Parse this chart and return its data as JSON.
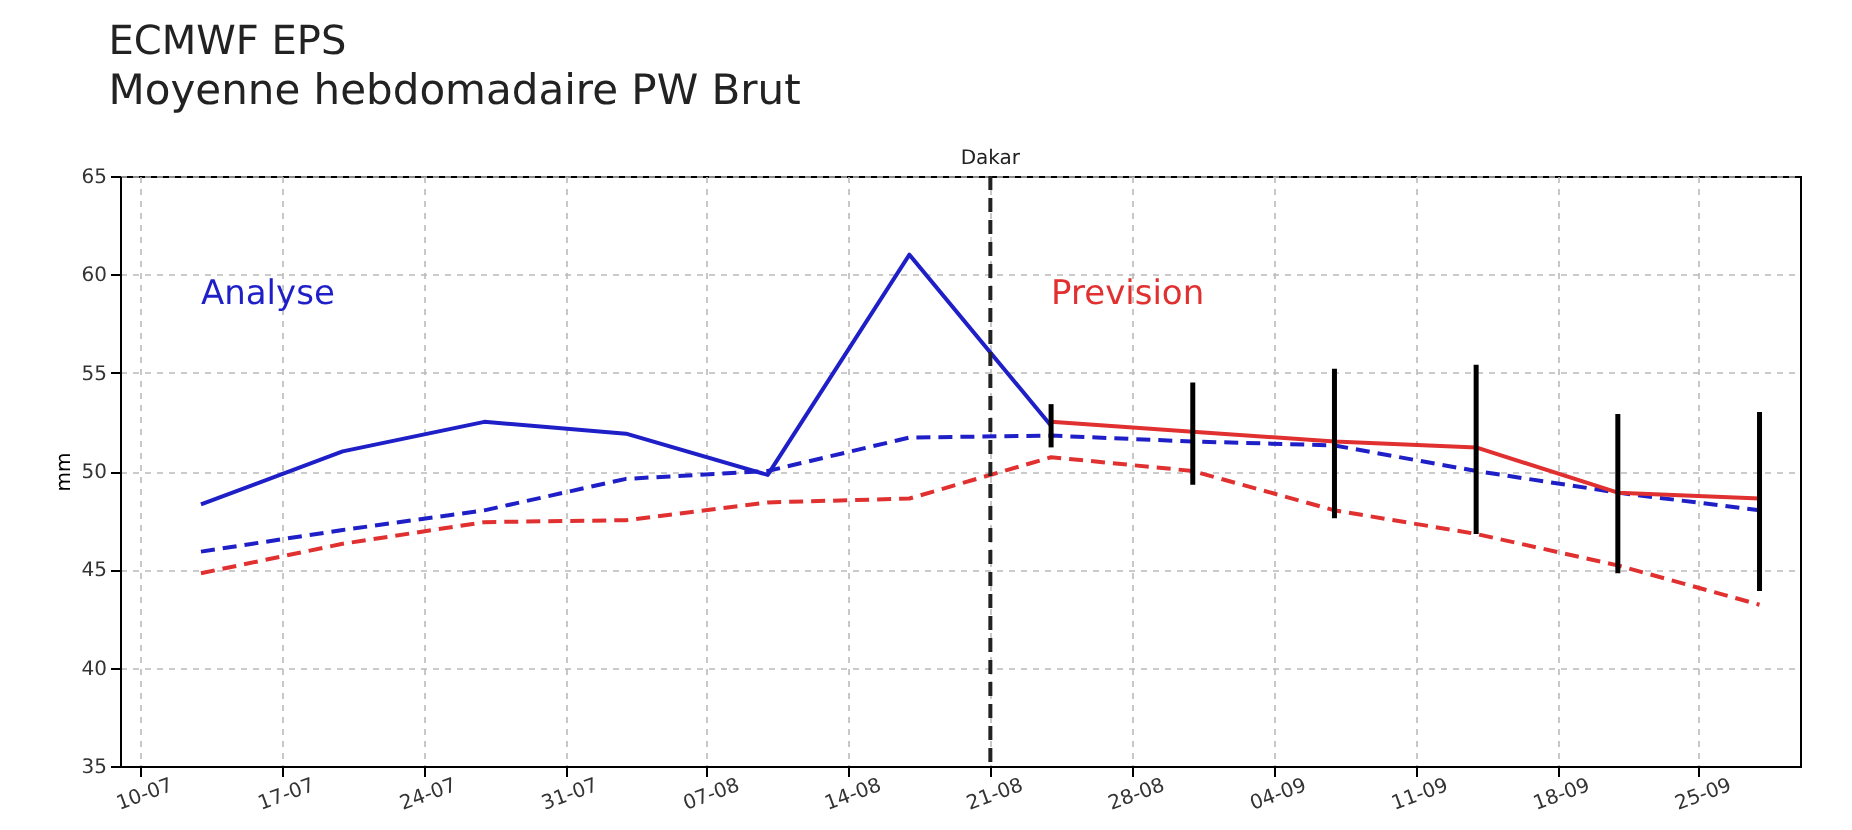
{
  "chart_data": {
    "type": "line",
    "title": "ECMWF EPS",
    "subtitle": "Moyenne hebdomadaire PW Brut",
    "ylabel": "mm",
    "x": [
      "--07-13",
      "--07-20",
      "--07-27",
      "--08-03",
      "--08-10",
      "--08-17",
      "--08-24",
      "--08-31",
      "--09-07",
      "--09-14",
      "--09-21",
      "--09-28"
    ],
    "series": [
      {
        "name": "Analyse",
        "color": "#1f1fc8",
        "line_style": "solid",
        "values": [
          48.3,
          51.0,
          52.5,
          51.9,
          49.8,
          61.0,
          52.3,
          null,
          null,
          null,
          null,
          null
        ]
      },
      {
        "color": "#1f1fc8",
        "line_style": "dashed",
        "values": [
          45.9,
          47.0,
          48.0,
          49.6,
          50.0,
          51.7,
          51.8,
          51.5,
          51.3,
          50.0,
          48.9,
          48.0
        ]
      },
      {
        "color": "#e03030",
        "line_style": "dashed",
        "values": [
          44.8,
          46.3,
          47.4,
          47.5,
          48.4,
          48.6,
          50.7,
          50.0,
          48.0,
          46.8,
          45.2,
          43.2
        ]
      },
      {
        "name": "Prevision",
        "color": "#e03030",
        "line_style": "solid",
        "values": [
          null,
          null,
          null,
          null,
          null,
          null,
          52.5,
          52.0,
          51.5,
          51.2,
          48.9,
          48.6
        ],
        "errors": [
          null,
          null,
          null,
          null,
          null,
          null,
          [
            51.2,
            53.4
          ],
          [
            49.3,
            54.5
          ],
          [
            47.6,
            55.2
          ],
          [
            46.8,
            55.4
          ],
          [
            44.8,
            52.9
          ],
          [
            43.9,
            53.0
          ]
        ]
      }
    ],
    "ylim": [
      35,
      65
    ],
    "yticks": [
      35,
      40,
      45,
      50,
      55,
      60,
      65
    ],
    "xlim": [
      "--07-09",
      "--09-30"
    ],
    "xticks": [
      {
        "value": "--07-10",
        "label": "10-07"
      },
      {
        "value": "--07-17",
        "label": "17-07"
      },
      {
        "value": "--07-24",
        "label": "24-07"
      },
      {
        "value": "--07-31",
        "label": "31-07"
      },
      {
        "value": "--08-07",
        "label": "07-08"
      },
      {
        "value": "--08-14",
        "label": "14-08"
      },
      {
        "value": "--08-21",
        "label": "21-08"
      },
      {
        "value": "--08-28",
        "label": "28-08"
      },
      {
        "value": "--09-04",
        "label": "04-09"
      },
      {
        "value": "--09-11",
        "label": "11-09"
      },
      {
        "value": "--09-18",
        "label": "18-09"
      },
      {
        "value": "--09-25",
        "label": "25-09"
      }
    ],
    "ref_lines": [
      {
        "axis": "x",
        "value": "--08-21",
        "label": "Dakar",
        "color": "#222222",
        "line_style": "dashed"
      }
    ],
    "grid": true,
    "marker": "none"
  }
}
